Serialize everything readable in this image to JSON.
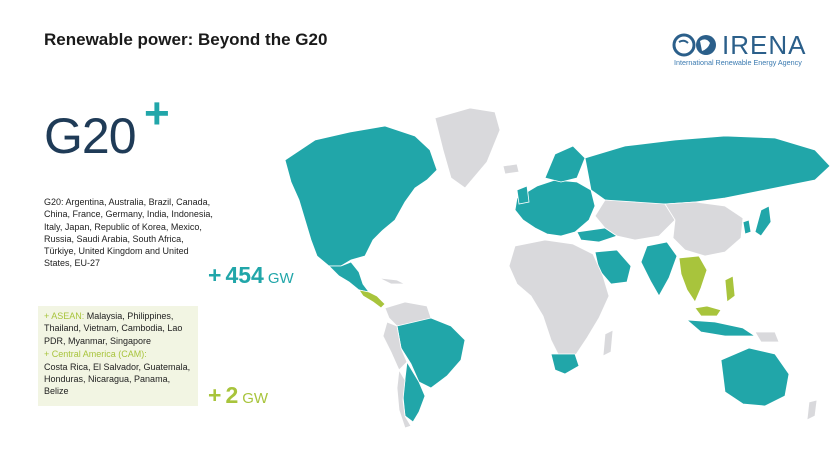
{
  "title": "Renewable power: Beyond the G20",
  "logo": {
    "name": "IRENA",
    "subtitle": "International Renewable Energy Agency"
  },
  "g20_logo": {
    "text": "G20",
    "plus": "+"
  },
  "g20_members": "G20: Argentina, Australia, Brazil, Canada, China, France, Germany, India, Indonesia, Italy, Japan, Republic of Korea, Mexico, Russia, Saudi Arabia, South Africa, Türkiye, United Kingdom and United States, EU-27",
  "g20_total": {
    "prefix": "+",
    "value": "454",
    "unit": "GW"
  },
  "asean": {
    "label": "+ ASEAN:",
    "members": "Malaysia, Philippines, Thailand, Vietnam, Cambodia, Lao PDR, Myanmar, Singapore"
  },
  "cam": {
    "label": "+ Central America (CAM):",
    "members": "Costa Rica, El Salvador, Guatemala, Honduras, Nicaragua, Panama, Belize"
  },
  "beyond_total": {
    "prefix": "+",
    "value": "2",
    "unit": "GW"
  },
  "colors": {
    "g20": "#21a6a9",
    "beyond_g20": "#a8c43c",
    "other": "#d9d9dc",
    "title_dark": "#1f3b57"
  }
}
